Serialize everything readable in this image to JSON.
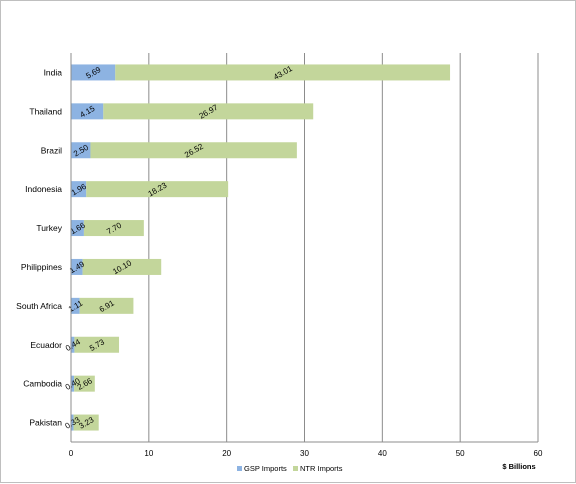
{
  "chart_data": {
    "type": "bar",
    "orientation": "horizontal",
    "stacked": true,
    "categories": [
      "India",
      "Thailand",
      "Brazil",
      "Indonesia",
      "Turkey",
      "Philippines",
      "South Africa",
      "Ecuador",
      "Cambodia",
      "Pakistan"
    ],
    "series": [
      {
        "name": "GSP Imports",
        "color": "#8db3e2",
        "values": [
          5.69,
          4.15,
          2.5,
          1.96,
          1.66,
          1.49,
          1.11,
          0.44,
          0.4,
          0.33
        ],
        "labels": [
          "5.69",
          "4.15",
          "2.50",
          "1.96",
          "1.66",
          "1.49",
          "1.11",
          "0.44",
          "0.40",
          "0.33"
        ]
      },
      {
        "name": "NTR Imports",
        "color": "#c3d69b",
        "values": [
          43.01,
          26.97,
          26.52,
          18.23,
          7.7,
          10.1,
          6.91,
          5.73,
          2.66,
          3.23
        ],
        "labels": [
          "43.01",
          "26.97",
          "26.52",
          "18.23",
          "7.70",
          "10.10",
          "6.91",
          "5.73",
          "2.66",
          "3.23"
        ]
      }
    ],
    "xlim": [
      0,
      60
    ],
    "xticks": [
      "0",
      "10",
      "20",
      "30",
      "40",
      "50",
      "60"
    ],
    "unit_label": "$ Billions",
    "grid": "vertical",
    "legend_position": "bottom"
  }
}
